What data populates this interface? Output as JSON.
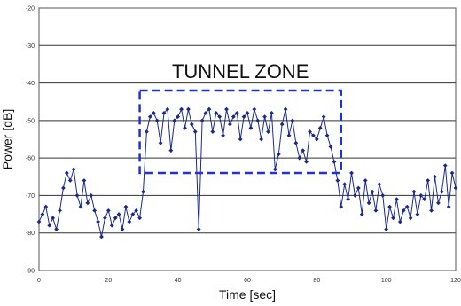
{
  "chart_data": {
    "type": "line",
    "title": "",
    "xlabel": "Time [sec]",
    "ylabel": "Power [dB]",
    "xlim": [
      0,
      120
    ],
    "ylim": [
      -90,
      -20
    ],
    "xticks": [
      0,
      20,
      40,
      60,
      80,
      100,
      120
    ],
    "yticks": [
      -90,
      -80,
      -70,
      -60,
      -50,
      -40,
      -30,
      -20
    ],
    "grid": "horizontal",
    "legend": "none",
    "annotation": {
      "label": "TUNNEL ZONE",
      "x_range": [
        29,
        87
      ],
      "y_range": [
        -64,
        -42
      ]
    },
    "series": [
      {
        "color": "#1a2a8c",
        "marker": "diamond",
        "x": [
          0,
          1,
          2,
          3,
          4,
          5,
          6,
          7,
          8,
          9,
          10,
          11,
          12,
          13,
          14,
          15,
          16,
          17,
          18,
          19,
          20,
          21,
          22,
          23,
          24,
          25,
          26,
          27,
          28,
          29,
          30,
          31,
          32,
          33,
          34,
          35,
          36,
          37,
          38,
          39,
          40,
          41,
          42,
          43,
          44,
          45,
          46,
          47,
          48,
          49,
          50,
          51,
          52,
          53,
          54,
          55,
          56,
          57,
          58,
          59,
          60,
          61,
          62,
          63,
          64,
          65,
          66,
          67,
          68,
          69,
          70,
          71,
          72,
          73,
          74,
          75,
          76,
          77,
          78,
          79,
          80,
          81,
          82,
          83,
          84,
          85,
          86,
          87,
          88,
          89,
          90,
          91,
          92,
          93,
          94,
          95,
          96,
          97,
          98,
          99,
          100,
          101,
          102,
          103,
          104,
          105,
          106,
          107,
          108,
          109,
          110,
          111,
          112,
          113,
          114,
          115,
          116,
          117,
          118,
          119,
          120
        ],
        "y": [
          -77,
          -75,
          -73,
          -78,
          -76,
          -79,
          -74,
          -68,
          -64,
          -66,
          -63,
          -70,
          -73,
          -66,
          -72,
          -70,
          -74,
          -77,
          -81,
          -76,
          -74,
          -78,
          -76,
          -75,
          -79,
          -73,
          -77,
          -75,
          -74,
          -76,
          -69,
          -53,
          -49,
          -48,
          -50,
          -56,
          -48,
          -47,
          -58,
          -50,
          -49,
          -47,
          -52,
          -47,
          -51,
          -53,
          -79,
          -50,
          -48,
          -47,
          -53,
          -48,
          -49,
          -54,
          -47,
          -51,
          -49,
          -48,
          -55,
          -49,
          -48,
          -52,
          -47,
          -50,
          -55,
          -49,
          -53,
          -48,
          -63,
          -59,
          -51,
          -47,
          -54,
          -50,
          -56,
          -60,
          -58,
          -61,
          -53,
          -54,
          -55,
          -52,
          -49,
          -54,
          -57,
          -61,
          -66,
          -73,
          -67,
          -71,
          -64,
          -70,
          -68,
          -75,
          -66,
          -72,
          -69,
          -74,
          -67,
          -70,
          -79,
          -73,
          -76,
          -71,
          -77,
          -74,
          -73,
          -76,
          -69,
          -75,
          -70,
          -71,
          -66,
          -74,
          -65,
          -72,
          -69,
          -62,
          -73,
          -64,
          -68
        ]
      }
    ]
  }
}
